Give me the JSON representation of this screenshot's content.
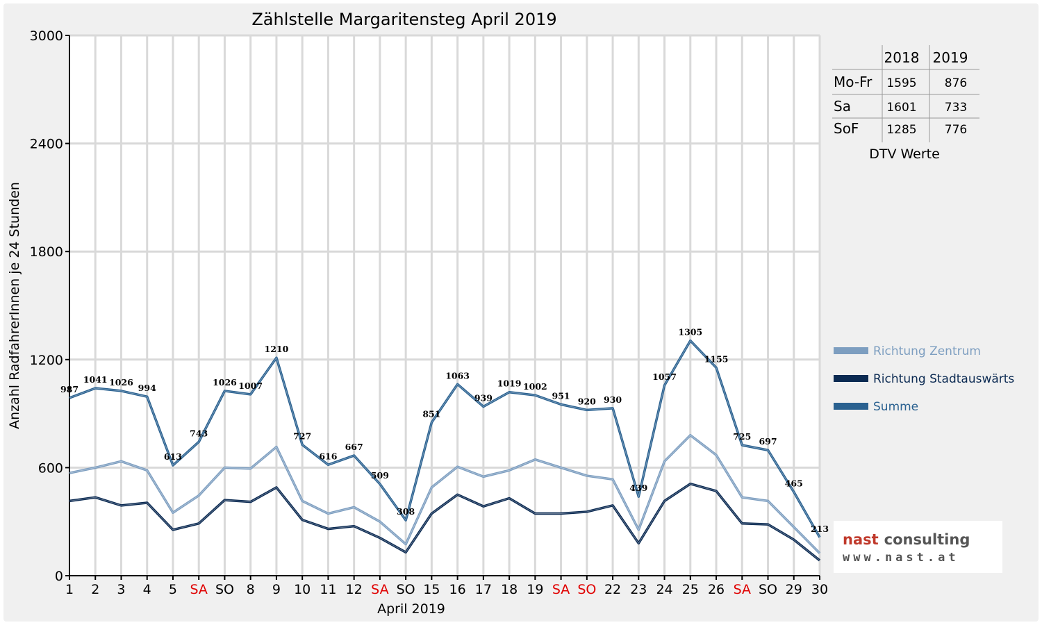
{
  "colors": {
    "zentrum": "#7d9ec0",
    "stadtauswaerts": "#0b2a52",
    "summe": "#2a6190",
    "weekend_red": "#e00000",
    "grid": "#d9d9d9"
  },
  "chart_data": {
    "type": "line",
    "title": "Zählstelle Margaritensteg April 2019",
    "xlabel": "April 2019",
    "ylabel": "Anzahl RadfahrerInnen je 24 Stunden",
    "ylim": [
      0,
      3000
    ],
    "yticks": [
      "0",
      "600",
      "1200",
      "1800",
      "2400",
      "3000"
    ],
    "grid": true,
    "legend_position": "right",
    "categories": [
      "1",
      "2",
      "3",
      "4",
      "5",
      "SA",
      "SO",
      "8",
      "9",
      "10",
      "11",
      "12",
      "SA",
      "SO",
      "15",
      "16",
      "17",
      "18",
      "19",
      "SA",
      "SO",
      "22",
      "23",
      "24",
      "25",
      "26",
      "SA",
      "SO",
      "29",
      "30"
    ],
    "red_categories": [
      6,
      13,
      20,
      21,
      27
    ],
    "series": [
      {
        "name": "Richtung Zentrum",
        "color_key": "zentrum",
        "values": [
          570,
          600,
          635,
          585,
          350,
          445,
          600,
          595,
          715,
          415,
          345,
          380,
          300,
          175,
          490,
          605,
          550,
          585,
          645,
          600,
          555,
          535,
          255,
          635,
          780,
          670,
          435,
          415,
          270,
          125
        ]
      },
      {
        "name": "Richtung Stadtauswärts",
        "color_key": "stadtauswaerts",
        "values": [
          415,
          435,
          390,
          405,
          255,
          290,
          420,
          410,
          490,
          310,
          260,
          275,
          210,
          130,
          345,
          450,
          385,
          430,
          345,
          345,
          355,
          390,
          180,
          415,
          510,
          470,
          290,
          285,
          200,
          85
        ]
      },
      {
        "name": "Summe",
        "color_key": "summe",
        "values": [
          987,
          1041,
          1026,
          994,
          613,
          743,
          1026,
          1007,
          1210,
          727,
          616,
          667,
          509,
          308,
          851,
          1063,
          939,
          1019,
          1002,
          951,
          920,
          930,
          439,
          1057,
          1305,
          1155,
          725,
          697,
          465,
          213
        ],
        "labels": [
          "987",
          "1041",
          "1026",
          "994",
          "613",
          "743",
          "1026",
          "1007",
          "1210",
          "727",
          "616",
          "667",
          "509",
          "308",
          "851",
          "1063",
          "939",
          "1019",
          "1002",
          "951",
          "920",
          "930",
          "439",
          "1057",
          "1305",
          "1155",
          "725",
          "697",
          "465",
          "213"
        ]
      }
    ],
    "dtv_table": {
      "headers": [
        "",
        "2018",
        "2019"
      ],
      "rows": [
        {
          "label": "Mo-Fr",
          "v2018": "1595",
          "v2019": "876"
        },
        {
          "label": "Sa",
          "v2018": "1601",
          "v2019": "733"
        },
        {
          "label": "SoF",
          "v2018": "1285",
          "v2019": "776"
        }
      ],
      "caption": "DTV Werte"
    }
  },
  "logo": {
    "brand_word1": "nast",
    "brand_word2": "consulting",
    "url": "www.nast.at"
  }
}
